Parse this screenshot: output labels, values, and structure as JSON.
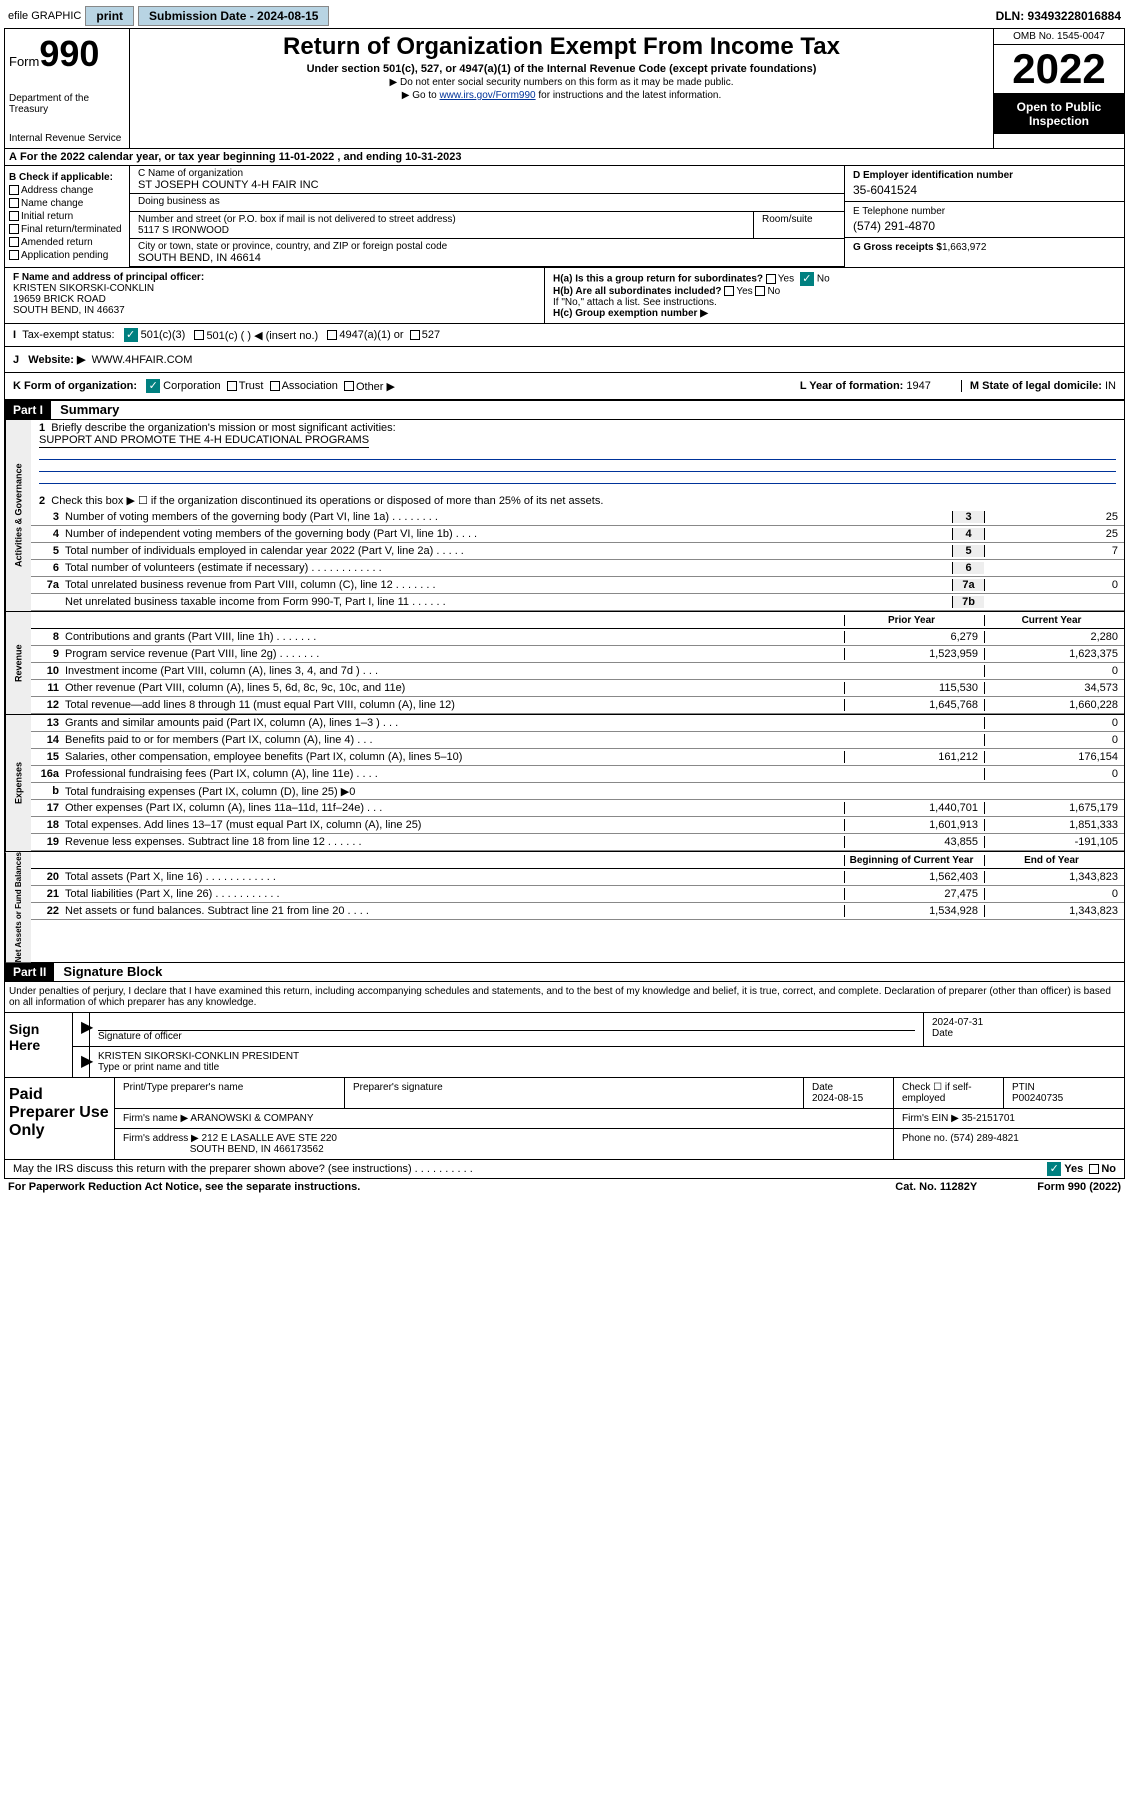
{
  "topbar": {
    "efile": "efile GRAPHIC",
    "print": "print",
    "sub_label": "Submission Date - 2024-08-15",
    "dln": "DLN: 93493228016884"
  },
  "header": {
    "form_label": "Form",
    "form_num": "990",
    "dept": "Department of the Treasury",
    "irs": "Internal Revenue Service",
    "title": "Return of Organization Exempt From Income Tax",
    "subtitle": "Under section 501(c), 527, or 4947(a)(1) of the Internal Revenue Code (except private foundations)",
    "note1": "▶ Do not enter social security numbers on this form as it may be made public.",
    "note2_pre": "▶ Go to ",
    "note2_link": "www.irs.gov/Form990",
    "note2_post": " for instructions and the latest information.",
    "omb": "OMB No. 1545-0047",
    "year": "2022",
    "inspection": "Open to Public Inspection"
  },
  "section_a": "For the 2022 calendar year, or tax year beginning 11-01-2022   , and ending 10-31-2023",
  "col_b": {
    "header": "B Check if applicable:",
    "opts": [
      "Address change",
      "Name change",
      "Initial return",
      "Final return/terminated",
      "Amended return",
      "Application pending"
    ]
  },
  "entity": {
    "c_label": "C Name of organization",
    "name": "ST JOSEPH COUNTY 4-H FAIR INC",
    "dba_label": "Doing business as",
    "street_label": "Number and street (or P.O. box if mail is not delivered to street address)",
    "room_label": "Room/suite",
    "street": "5117 S IRONWOOD",
    "city_label": "City or town, state or province, country, and ZIP or foreign postal code",
    "city": "SOUTH BEND, IN  46614",
    "f_label": "F Name and address of principal officer:",
    "officer": "KRISTEN SIKORSKI-CONKLIN",
    "officer_addr1": "19659 BRICK ROAD",
    "officer_addr2": "SOUTH BEND, IN  46637"
  },
  "col_d": {
    "d_label": "D Employer identification number",
    "ein": "35-6041524",
    "e_label": "E Telephone number",
    "phone": "(574) 291-4870",
    "g_label": "G Gross receipts $",
    "gross": "1,663,972"
  },
  "h": {
    "ha": "H(a)  Is this a group return for subordinates?",
    "hb": "H(b)  Are all subordinates included?",
    "hb_note": "If \"No,\" attach a list. See instructions.",
    "hc": "H(c)  Group exemption number ▶",
    "no": "No",
    "yes": "Yes"
  },
  "tax_status": {
    "label": "Tax-exempt status:",
    "i": "I",
    "c3": "501(c)(3)",
    "c_other": "501(c) (  ) ◀ (insert no.)",
    "a1": "4947(a)(1) or",
    "s527": "527"
  },
  "website": {
    "j": "J",
    "label": "Website: ▶",
    "val": "WWW.4HFAIR.COM"
  },
  "k_row": {
    "k": "K Form of organization:",
    "corp": "Corporation",
    "trust": "Trust",
    "assoc": "Association",
    "other": "Other ▶",
    "l": "L Year of formation:",
    "l_val": "1947",
    "m": "M State of legal domicile:",
    "m_val": "IN"
  },
  "part1": {
    "tag": "Part I",
    "title": "Summary",
    "l1": "Briefly describe the organization's mission or most significant activities:",
    "mission": "SUPPORT AND PROMOTE THE 4-H EDUCATIONAL PROGRAMS",
    "l2": "Check this box ▶ ☐  if the organization discontinued its operations or disposed of more than 25% of its net assets.",
    "side_gov": "Activities & Governance",
    "side_rev": "Revenue",
    "side_exp": "Expenses",
    "side_net": "Net Assets or Fund Balances",
    "prior": "Prior Year",
    "current": "Current Year",
    "begin": "Beginning of Current Year",
    "end": "End of Year",
    "rows_gov": [
      {
        "n": "3",
        "t": "Number of voting members of the governing body (Part VI, line 1a)   .    .    .    .    .    .    .    .",
        "b": "3",
        "v": "25"
      },
      {
        "n": "4",
        "t": "Number of independent voting members of the governing body (Part VI, line 1b)  .    .    .    .",
        "b": "4",
        "v": "25"
      },
      {
        "n": "5",
        "t": "Total number of individuals employed in calendar year 2022 (Part V, line 2a)    .    .    .    .    .",
        "b": "5",
        "v": "7"
      },
      {
        "n": "6",
        "t": "Total number of volunteers (estimate if necessary)   .    .    .    .    .    .    .    .    .    .    .    .",
        "b": "6",
        "v": ""
      },
      {
        "n": "7a",
        "t": "Total unrelated business revenue from Part VIII, column (C), line 12   .    .    .    .    .    .    .",
        "b": "7a",
        "v": "0"
      },
      {
        "n": "",
        "t": "Net unrelated business taxable income from Form 990-T, Part I, line 11    .    .    .    .    .    .",
        "b": "7b",
        "v": ""
      }
    ],
    "rows_rev": [
      {
        "n": "8",
        "t": "Contributions and grants (Part VIII, line 1h)    .    .    .    .    .    .    .",
        "p": "6,279",
        "c": "2,280"
      },
      {
        "n": "9",
        "t": "Program service revenue (Part VIII, line 2g)   .    .    .    .    .    .    .",
        "p": "1,523,959",
        "c": "1,623,375"
      },
      {
        "n": "10",
        "t": "Investment income (Part VIII, column (A), lines 3, 4, and 7d )   .    .    .",
        "p": "",
        "c": "0"
      },
      {
        "n": "11",
        "t": "Other revenue (Part VIII, column (A), lines 5, 6d, 8c, 9c, 10c, and 11e)",
        "p": "115,530",
        "c": "34,573"
      },
      {
        "n": "12",
        "t": "Total revenue—add lines 8 through 11 (must equal Part VIII, column (A), line 12)",
        "p": "1,645,768",
        "c": "1,660,228"
      }
    ],
    "rows_exp": [
      {
        "n": "13",
        "t": "Grants and similar amounts paid (Part IX, column (A), lines 1–3 )   .    .    .",
        "p": "",
        "c": "0"
      },
      {
        "n": "14",
        "t": "Benefits paid to or for members (Part IX, column (A), line 4)   .    .    .",
        "p": "",
        "c": "0"
      },
      {
        "n": "15",
        "t": "Salaries, other compensation, employee benefits (Part IX, column (A), lines 5–10)",
        "p": "161,212",
        "c": "176,154"
      },
      {
        "n": "16a",
        "t": "Professional fundraising fees (Part IX, column (A), line 11e)   .    .    .    .",
        "p": "",
        "c": "0"
      },
      {
        "n": "b",
        "t": "Total fundraising expenses (Part IX, column (D), line 25) ▶0",
        "p": "gray",
        "c": "gray"
      },
      {
        "n": "17",
        "t": "Other expenses (Part IX, column (A), lines 11a–11d, 11f–24e)   .    .    .",
        "p": "1,440,701",
        "c": "1,675,179"
      },
      {
        "n": "18",
        "t": "Total expenses. Add lines 13–17 (must equal Part IX, column (A), line 25)",
        "p": "1,601,913",
        "c": "1,851,333"
      },
      {
        "n": "19",
        "t": "Revenue less expenses. Subtract line 18 from line 12   .    .    .    .    .    .",
        "p": "43,855",
        "c": "-191,105"
      }
    ],
    "rows_net": [
      {
        "n": "20",
        "t": "Total assets (Part X, line 16)   .    .    .    .    .    .    .    .    .    .    .    .",
        "p": "1,562,403",
        "c": "1,343,823"
      },
      {
        "n": "21",
        "t": "Total liabilities (Part X, line 26)  .    .    .    .    .    .    .    .    .    .    .",
        "p": "27,475",
        "c": "0"
      },
      {
        "n": "22",
        "t": "Net assets or fund balances. Subtract line 21 from line 20   .    .    .    .",
        "p": "1,534,928",
        "c": "1,343,823"
      }
    ]
  },
  "part2": {
    "tag": "Part II",
    "title": "Signature Block",
    "penalty": "Under penalties of perjury, I declare that I have examined this return, including accompanying schedules and statements, and to the best of my knowledge and belief, it is true, correct, and complete. Declaration of preparer (other than officer) is based on all information of which preparer has any knowledge.",
    "sign_here": "Sign Here",
    "sig_officer": "Signature of officer",
    "date": "Date",
    "date_val": "2024-07-31",
    "name_title": "KRISTEN SIKORSKI-CONKLIN  PRESIDENT",
    "type_label": "Type or print name and title"
  },
  "paid": {
    "label": "Paid Preparer Use Only",
    "prep_name": "Print/Type preparer's name",
    "prep_sig": "Preparer's signature",
    "date": "Date",
    "date_val": "2024-08-15",
    "check": "Check ☐ if self-employed",
    "ptin": "PTIN",
    "ptin_val": "P00240735",
    "firm_name": "Firm's name    ▶",
    "firm_name_val": "ARANOWSKI & COMPANY",
    "firm_ein": "Firm's EIN ▶",
    "firm_ein_val": "35-2151701",
    "firm_addr": "Firm's address ▶",
    "firm_addr1": "212 E LASALLE AVE STE 220",
    "firm_addr2": "SOUTH BEND, IN  466173562",
    "phone": "Phone no.",
    "phone_val": "(574) 289-4821"
  },
  "footer": {
    "irs_q": "May the IRS discuss this return with the preparer shown above? (see instructions)    .    .    .    .    .    .    .    .    .    .",
    "yes": "Yes",
    "no": "No",
    "paperwork": "For Paperwork Reduction Act Notice, see the separate instructions.",
    "cat": "Cat. No. 11282Y",
    "form": "Form 990 (2022)"
  }
}
